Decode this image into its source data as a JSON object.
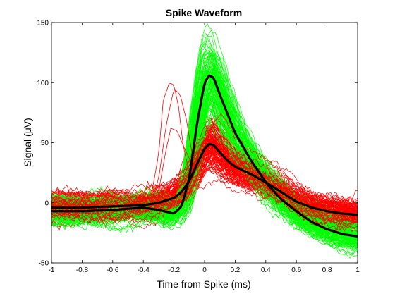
{
  "chart_data": {
    "type": "line",
    "title": "Spike Waveform",
    "xlabel": "Time from Spike (ms)",
    "ylabel": "Signal (μV)",
    "xlim": [
      -1,
      1
    ],
    "ylim": [
      -50,
      150
    ],
    "xticks": [
      -1,
      -0.8,
      -0.6,
      -0.4,
      -0.2,
      0,
      0.2,
      0.4,
      0.6,
      0.8,
      1
    ],
    "xtick_labels": [
      "-1",
      "-0.8",
      "-0.6",
      "-0.4",
      "-0.2",
      "0",
      "0.2",
      "0.4",
      "0.6",
      "0.8",
      "1"
    ],
    "yticks": [
      -50,
      0,
      50,
      100,
      150
    ],
    "ytick_labels": [
      "-50",
      "0",
      "50",
      "100",
      "150"
    ],
    "grid": false,
    "colors": {
      "unit_a": "#00ff00",
      "unit_b": "#ff0000",
      "mean": "#000000"
    },
    "x": [
      -1,
      -0.8,
      -0.6,
      -0.4,
      -0.3,
      -0.2,
      -0.15,
      -0.1,
      -0.05,
      0,
      0.03,
      0.06,
      0.1,
      0.15,
      0.2,
      0.3,
      0.4,
      0.5,
      0.6,
      0.7,
      0.8,
      0.9,
      1
    ],
    "series": [
      {
        "key": "unit_a_mean",
        "color": "#000000",
        "values": [
          -7,
          -7,
          -6,
          -4,
          -6,
          -9,
          -3,
          20,
          65,
          100,
          106,
          104,
          90,
          74,
          58,
          36,
          17,
          3,
          -7,
          -16,
          -22,
          -26,
          -28
        ]
      },
      {
        "key": "unit_b_mean",
        "color": "#000000",
        "values": [
          -4,
          -4,
          -3,
          -2,
          0,
          4,
          9,
          18,
          32,
          45,
          49,
          48,
          42,
          35,
          30,
          24,
          17,
          9,
          1,
          -4,
          -7,
          -9,
          -10
        ]
      }
    ],
    "red_outliers": [
      {
        "x": [
          -1,
          -0.5,
          -0.35,
          -0.3,
          -0.27,
          -0.23,
          -0.2,
          -0.17,
          -0.14,
          -0.1,
          -0.05,
          0,
          0.1,
          0.3,
          0.5,
          0.8,
          1
        ],
        "values": [
          -3,
          -2,
          5,
          40,
          85,
          100,
          98,
          80,
          48,
          25,
          30,
          45,
          35,
          20,
          5,
          -6,
          -8
        ]
      },
      {
        "x": [
          -1,
          -0.5,
          -0.35,
          -0.3,
          -0.25,
          -0.2,
          -0.16,
          -0.12,
          -0.08,
          -0.04,
          0,
          0.05,
          0.15,
          0.3,
          0.5,
          0.8,
          1
        ],
        "values": [
          -2,
          -1,
          0,
          20,
          65,
          95,
          90,
          70,
          40,
          28,
          42,
          48,
          38,
          22,
          6,
          -5,
          -9
        ]
      },
      {
        "x": [
          -1,
          -0.5,
          -0.35,
          -0.3,
          -0.25,
          -0.22,
          -0.18,
          -0.13,
          -0.08,
          -0.04,
          0,
          0.05,
          0.2,
          0.35,
          0.55,
          0.8,
          1
        ],
        "values": [
          -4,
          -3,
          -1,
          10,
          45,
          62,
          60,
          45,
          32,
          30,
          40,
          44,
          32,
          18,
          3,
          -6,
          -8
        ]
      }
    ]
  }
}
